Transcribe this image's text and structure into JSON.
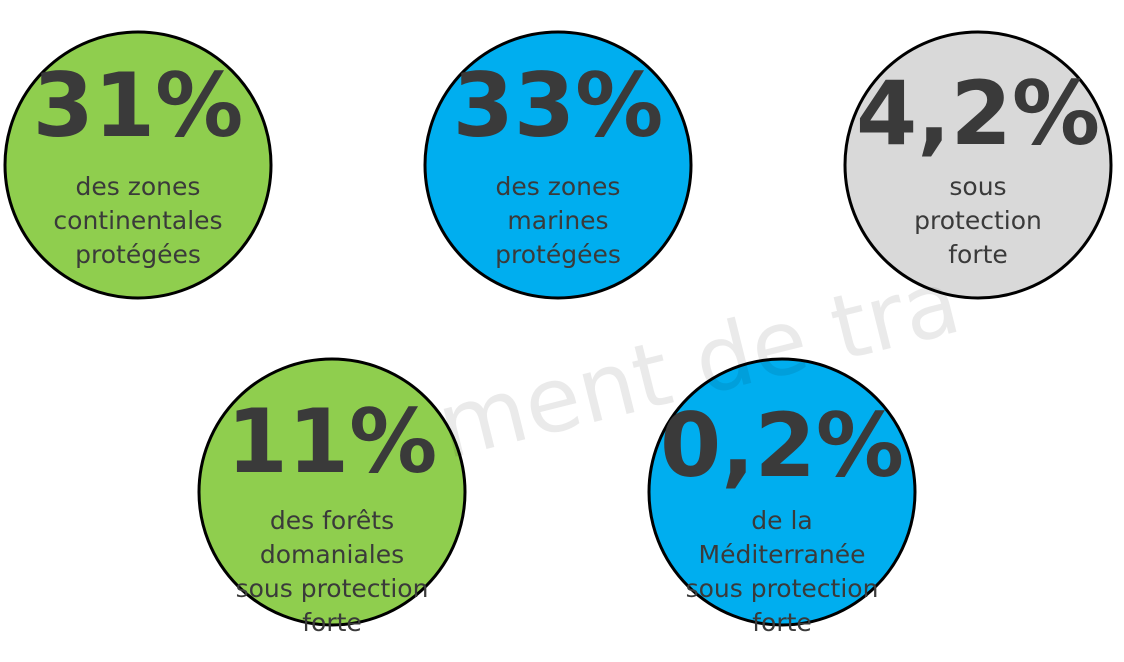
{
  "items": [
    {
      "value": "31%",
      "lines": [
        "des zones",
        "continentales",
        "protégées"
      ],
      "color": "#8fce4e"
    },
    {
      "value": "33%",
      "lines": [
        "des zones",
        "marines",
        "protégées"
      ],
      "color": "#00aeef"
    },
    {
      "value": "4,2%",
      "lines": [
        "sous",
        "protection",
        "forte"
      ],
      "color": "#d9d9d9"
    },
    {
      "value": "11%",
      "lines": [
        "des forêts",
        "domaniales",
        "sous protection",
        "forte"
      ],
      "color": "#8fce4e"
    },
    {
      "value": "0,2%",
      "lines": [
        "de la",
        "Méditerranée",
        "sous protection",
        "forte"
      ],
      "color": "#00aeef"
    }
  ],
  "watermark": "ment de tra"
}
